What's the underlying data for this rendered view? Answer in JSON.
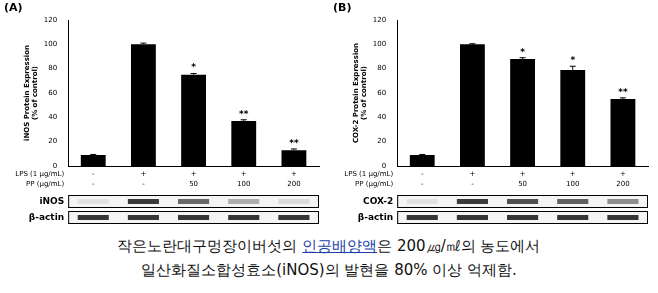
{
  "chart_data": [
    {
      "type": "bar",
      "panel_label": "(A)",
      "y_label": [
        "iNOS Protein Expression",
        "(% of control)"
      ],
      "x_row_labels": [
        "LPS (1 μg/mL)",
        "PP (μg/mL)"
      ],
      "categories": [
        [
          "-",
          "-"
        ],
        [
          "+",
          "-"
        ],
        [
          "+",
          "50"
        ],
        [
          "+",
          "100"
        ],
        [
          "+",
          "200"
        ]
      ],
      "values": [
        9,
        100,
        75,
        37,
        13
      ],
      "errors": [
        0.5,
        1,
        1,
        1,
        1
      ],
      "significance": [
        null,
        null,
        "*",
        "**",
        "**"
      ],
      "blot_rows": [
        "iNOS",
        "β-actin"
      ],
      "color": "#000000",
      "ylim": [
        0,
        120
      ],
      "yticks": [
        0,
        20,
        40,
        60,
        80,
        100,
        120
      ],
      "grid": false
    },
    {
      "type": "bar",
      "panel_label": "(B)",
      "y_label": [
        "COX-2 Protein Expression",
        "(% of control)"
      ],
      "x_row_labels": [
        "LPS (1 μg/mL)",
        "PP (μg/mL)"
      ],
      "categories": [
        [
          "-",
          "-"
        ],
        [
          "+",
          "-"
        ],
        [
          "+",
          "50"
        ],
        [
          "+",
          "100"
        ],
        [
          "+",
          "200"
        ]
      ],
      "values": [
        9,
        100,
        88,
        79,
        55
      ],
      "errors": [
        0.5,
        0.5,
        1,
        3,
        1
      ],
      "significance": [
        null,
        null,
        "*",
        "*",
        "**"
      ],
      "blot_rows": [
        "COX-2",
        "β-actin"
      ],
      "color": "#000000",
      "ylim": [
        0,
        120
      ],
      "yticks": [
        0,
        20,
        40,
        60,
        80,
        100,
        120
      ],
      "grid": false
    }
  ],
  "caption": {
    "lines": [
      "작은노란대구멍장이버섯의 인공배양액은 200㎍/㎖의 농도에서",
      "일산화질소합성효소(iNOS)의 발현을 80% 이상 억제함."
    ],
    "highlight": "인공배양액"
  }
}
